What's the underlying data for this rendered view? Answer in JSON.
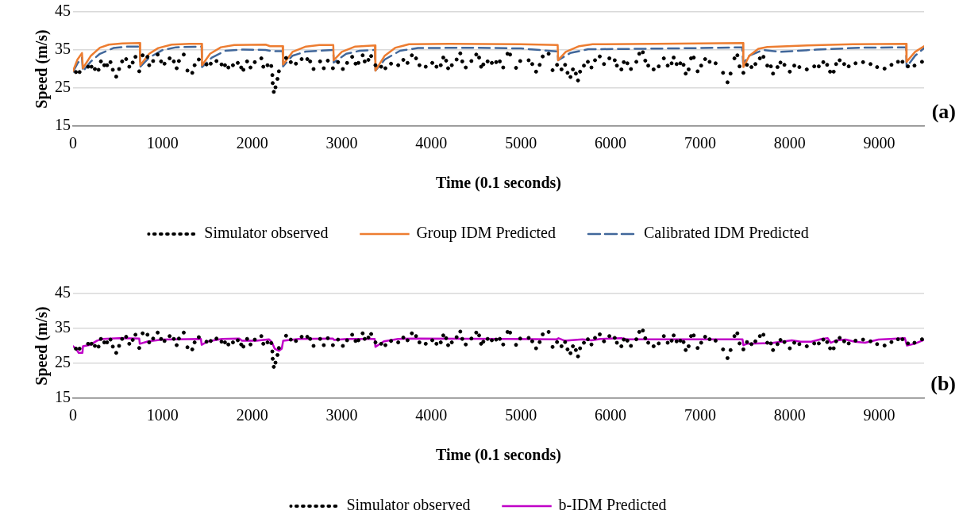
{
  "chart_data": [
    {
      "type": "line",
      "xlabel": "Time (0.1 seconds)",
      "ylabel": "Speed (m/s)",
      "annotations": [
        "(a)"
      ],
      "xlim": [
        0,
        9500
      ],
      "xticks": [
        0,
        1000,
        2000,
        3000,
        4000,
        5000,
        6000,
        7000,
        8000,
        9000
      ],
      "ylim": [
        15,
        45
      ],
      "yticks": [
        15,
        25,
        35,
        45
      ],
      "grid": "y",
      "legend": "bottom",
      "series": [
        {
          "name": "Simulator observed",
          "type": "scatter",
          "marker": "circle",
          "color": "#000000",
          "x": [
            32,
            73,
            168,
            206,
            244,
            285,
            311,
            349,
            380,
            418,
            444,
            482,
            514,
            548,
            593,
            628,
            666,
            697,
            739,
            777,
            831,
            850,
            894,
            945,
            983,
            1021,
            1078,
            1125,
            1157,
            1182,
            1236,
            1277,
            1331,
            1357,
            1404,
            1490,
            1537,
            1601,
            1658,
            1696,
            1734,
            1785,
            1839,
            1877,
            1902,
            1943,
            1981,
            2029,
            2102,
            2124,
            2171,
            2213,
            2225,
            2229,
            2241,
            2260,
            2282,
            2298,
            2378,
            2431,
            2488,
            2552,
            2615,
            2647,
            2685,
            2758,
            2799,
            2844,
            2901,
            2958,
            3012,
            3059,
            3116,
            3154,
            3186,
            3233,
            3256,
            3297,
            3328,
            3376,
            3440,
            3487,
            3550,
            3630,
            3687,
            3734,
            3782,
            3829,
            3867,
            3937,
            4010,
            4057,
            4105,
            4133,
            4165,
            4187,
            4228,
            4282,
            4323,
            4345,
            4384,
            4447,
            4501,
            4533,
            4555,
            4580,
            4628,
            4675,
            4723,
            4764,
            4802,
            4850,
            4879,
            4945,
            4992,
            5086,
            5126,
            5169,
            5209,
            5243,
            5309,
            5353,
            5403,
            5453,
            5493,
            5520,
            5553,
            5580,
            5613,
            5637,
            5660,
            5703,
            5747,
            5787,
            5827,
            5880,
            5927,
            5987,
            6047,
            6071,
            6121,
            6148,
            6188,
            6228,
            6288,
            6321,
            6361,
            6388,
            6421,
            6481,
            6538,
            6595,
            6638,
            6682,
            6705,
            6738,
            6779,
            6815,
            6839,
            6872,
            6899,
            6929,
            6972,
            7012,
            7056,
            7106,
            7173,
            7256,
            7306,
            7340,
            7383,
            7416,
            7440,
            7483,
            7523,
            7573,
            7617,
            7667,
            7707,
            7750,
            7790,
            7814,
            7864,
            7897,
            7941,
            8001,
            8051,
            8108,
            8191,
            8274,
            8325,
            8375,
            8418,
            8451,
            8491,
            8518,
            8558,
            8608,
            8659,
            8735,
            8819,
            8902,
            8976,
            9059,
            9136,
            9209,
            9259,
            9320,
            9393,
            9477
          ],
          "values": [
            29.2,
            29.2,
            30.6,
            30.6,
            30,
            29.8,
            32,
            31,
            31,
            31.8,
            29.8,
            28,
            30,
            32,
            32.6,
            30.6,
            31.7,
            33.2,
            29.4,
            33.6,
            33.2,
            31,
            32.1,
            33.8,
            32,
            31.4,
            32.8,
            32,
            30.2,
            32.1,
            33.8,
            29.6,
            29,
            31,
            32.5,
            31.2,
            31.4,
            32.1,
            31.2,
            31,
            30.4,
            31,
            31.6,
            30.4,
            29.8,
            32,
            30.4,
            31.8,
            32.8,
            30.6,
            31,
            30.8,
            28.4,
            26.3,
            24,
            25.2,
            27.4,
            29.4,
            32.9,
            31.8,
            31.4,
            32.6,
            32.6,
            32,
            30,
            32,
            30.2,
            32.2,
            30.2,
            31.8,
            30,
            31.6,
            33.2,
            31.4,
            31.6,
            33.6,
            32,
            32.4,
            33.4,
            31,
            30.6,
            30.2,
            31.4,
            31,
            32.4,
            31.6,
            33.6,
            32.8,
            31,
            30.6,
            31.6,
            30.6,
            31,
            33,
            32.2,
            30.2,
            31,
            32.5,
            34.1,
            32,
            30.4,
            32.1,
            33.8,
            33,
            30.6,
            31.2,
            32,
            31.6,
            31.8,
            32,
            30.4,
            34,
            33.8,
            30.3,
            32.1,
            32.3,
            31.3,
            29.3,
            31.1,
            33.3,
            34,
            29.7,
            31.1,
            29.9,
            31.1,
            29,
            27.9,
            29.9,
            28.8,
            27,
            29.3,
            30.9,
            31.9,
            30.4,
            32.3,
            33.3,
            31.3,
            32.8,
            32.3,
            30.9,
            29.9,
            31.8,
            31.5,
            30,
            31.9,
            34,
            34.4,
            32.2,
            30.9,
            29.9,
            30.7,
            32.8,
            30.9,
            31.5,
            33,
            31.3,
            31.5,
            31.1,
            28.8,
            29.9,
            32.8,
            33,
            29.4,
            30.9,
            32.6,
            31.9,
            31.5,
            29,
            26.5,
            28.8,
            32.8,
            33.6,
            30.7,
            29,
            31.1,
            30.5,
            31.3,
            32.8,
            33.2,
            30.9,
            30.7,
            28.8,
            30.5,
            31.7,
            31.1,
            29.3,
            30.9,
            30.5,
            29.9,
            30.7,
            30.7,
            31.8,
            31.1,
            29.3,
            29.3,
            31.3,
            32.3,
            31.3,
            30.7,
            31.5,
            31.8,
            31.3,
            30.5,
            30.1,
            31.1,
            31.9,
            31.9,
            30.7,
            30.9,
            31.9
          ]
        },
        {
          "name": "Group IDM Predicted",
          "type": "line",
          "marker": "none",
          "line_style": "solid",
          "color": "#ed7d31",
          "x": [
            0,
            50,
            100,
            110,
            200,
            300,
            400,
            550,
            745,
            750,
            850,
            950,
            1100,
            1300,
            1436,
            1440,
            1530,
            1650,
            1800,
            2150,
            2200,
            2340,
            2345,
            2450,
            2600,
            2750,
            2905,
            2910,
            3000,
            3150,
            3370,
            3376,
            3480,
            3600,
            3750,
            4200,
            5000,
            5410,
            5415,
            5500,
            5650,
            5800,
            6500,
            7480,
            7483,
            7550,
            7650,
            7750,
            8200,
            8700,
            9300,
            9305,
            9400,
            9500
          ],
          "values": [
            29.5,
            32.5,
            34.2,
            30.2,
            33.5,
            35.6,
            36.4,
            36.7,
            36.8,
            31,
            34,
            35.5,
            36.4,
            36.6,
            36.6,
            31,
            34,
            35.7,
            36.3,
            36.4,
            36,
            36,
            31.2,
            34.5,
            35.9,
            36.3,
            36.3,
            32.3,
            34.5,
            35.9,
            36.2,
            29.6,
            33.5,
            35.6,
            36.5,
            36.6,
            36.5,
            36.3,
            32.3,
            34.5,
            36,
            36.5,
            36.6,
            36.8,
            30.5,
            33.5,
            35.3,
            35.8,
            36.2,
            36.5,
            36.6,
            31.9,
            34.5,
            36
          ]
        },
        {
          "name": "Calibrated IDM Predicted",
          "type": "line",
          "marker": "none",
          "line_style": "dashed",
          "color": "#41679a",
          "x": [
            0,
            50,
            100,
            110,
            200,
            300,
            450,
            600,
            745,
            750,
            850,
            1000,
            1150,
            1436,
            1440,
            1550,
            1700,
            1900,
            2150,
            2220,
            2340,
            2345,
            2450,
            2600,
            2905,
            2910,
            3050,
            3200,
            3370,
            3376,
            3480,
            3650,
            3850,
            4500,
            5000,
            5410,
            5415,
            5550,
            5750,
            6300,
            7000,
            7470,
            7480,
            7550,
            7700,
            7900,
            8300,
            8800,
            9300,
            9305,
            9400,
            9500
          ],
          "values": [
            29.3,
            31.5,
            33,
            29.4,
            32,
            34,
            35.5,
            35.9,
            35.9,
            30.6,
            33,
            35,
            35.7,
            35.9,
            30.5,
            33,
            34.8,
            35.1,
            35,
            34.7,
            34.7,
            30.7,
            33.5,
            34.6,
            35,
            31.7,
            34,
            34.8,
            35,
            29.6,
            32.5,
            34.8,
            35.5,
            35.6,
            35.4,
            34.6,
            32.3,
            34.2,
            35.2,
            35.3,
            35.5,
            35.7,
            31.5,
            33.5,
            35,
            34.5,
            35.1,
            35.6,
            35.7,
            30.5,
            33.5,
            35.5
          ]
        }
      ]
    },
    {
      "type": "line",
      "xlabel": "Time (0.1 seconds)",
      "ylabel": "Speed (m/s)",
      "annotations": [
        "(b)"
      ],
      "xlim": [
        0,
        9500
      ],
      "xticks": [
        0,
        1000,
        2000,
        3000,
        4000,
        5000,
        6000,
        7000,
        8000,
        9000
      ],
      "ylim": [
        15,
        45
      ],
      "yticks": [
        15,
        25,
        35,
        45
      ],
      "grid": "y",
      "legend": "bottom",
      "series": [
        {
          "name": "Simulator observed",
          "type": "scatter",
          "marker": "circle",
          "color": "#000000",
          "x": [
            32,
            73,
            168,
            206,
            244,
            285,
            311,
            349,
            380,
            418,
            444,
            482,
            514,
            548,
            593,
            628,
            666,
            697,
            739,
            777,
            831,
            850,
            894,
            945,
            983,
            1021,
            1078,
            1125,
            1157,
            1182,
            1236,
            1277,
            1331,
            1357,
            1404,
            1490,
            1537,
            1601,
            1658,
            1696,
            1734,
            1785,
            1839,
            1877,
            1902,
            1943,
            1981,
            2029,
            2102,
            2124,
            2171,
            2213,
            2225,
            2229,
            2241,
            2260,
            2282,
            2298,
            2378,
            2431,
            2488,
            2552,
            2615,
            2647,
            2685,
            2758,
            2799,
            2844,
            2901,
            2958,
            3012,
            3059,
            3116,
            3154,
            3186,
            3233,
            3256,
            3297,
            3328,
            3376,
            3440,
            3487,
            3550,
            3630,
            3687,
            3734,
            3782,
            3829,
            3867,
            3937,
            4010,
            4057,
            4105,
            4133,
            4165,
            4187,
            4228,
            4282,
            4323,
            4345,
            4384,
            4447,
            4501,
            4533,
            4555,
            4580,
            4628,
            4675,
            4723,
            4764,
            4802,
            4850,
            4879,
            4945,
            4992,
            5086,
            5126,
            5169,
            5209,
            5243,
            5309,
            5353,
            5403,
            5453,
            5493,
            5520,
            5553,
            5580,
            5613,
            5637,
            5660,
            5703,
            5747,
            5787,
            5827,
            5880,
            5927,
            5987,
            6047,
            6071,
            6121,
            6148,
            6188,
            6228,
            6288,
            6321,
            6361,
            6388,
            6421,
            6481,
            6538,
            6595,
            6638,
            6682,
            6705,
            6738,
            6779,
            6815,
            6839,
            6872,
            6899,
            6929,
            6972,
            7012,
            7056,
            7106,
            7173,
            7256,
            7306,
            7340,
            7383,
            7416,
            7440,
            7483,
            7523,
            7573,
            7617,
            7667,
            7707,
            7750,
            7790,
            7814,
            7864,
            7897,
            7941,
            8001,
            8051,
            8108,
            8191,
            8274,
            8325,
            8375,
            8418,
            8451,
            8491,
            8518,
            8558,
            8608,
            8659,
            8735,
            8819,
            8902,
            8976,
            9059,
            9136,
            9209,
            9259,
            9320,
            9393,
            9477
          ],
          "values": [
            29.2,
            29.2,
            30.6,
            30.6,
            30,
            29.8,
            32,
            31,
            31,
            31.8,
            29.8,
            28,
            30,
            32,
            32.6,
            30.6,
            31.7,
            33.2,
            29.4,
            33.6,
            33.2,
            31,
            32.1,
            33.8,
            32,
            31.4,
            32.8,
            32,
            30.2,
            32.1,
            33.8,
            29.6,
            29,
            31,
            32.5,
            31.2,
            31.4,
            32.1,
            31.2,
            31,
            30.4,
            31,
            31.6,
            30.4,
            29.8,
            32,
            30.4,
            31.8,
            32.8,
            30.6,
            31,
            30.8,
            28.4,
            26.3,
            24,
            25.2,
            27.4,
            29.4,
            32.9,
            31.8,
            31.4,
            32.6,
            32.6,
            32,
            30,
            32,
            30.2,
            32.2,
            30.2,
            31.8,
            30,
            31.6,
            33.2,
            31.4,
            31.6,
            33.6,
            32,
            32.4,
            33.4,
            31,
            30.6,
            30.2,
            31.4,
            31,
            32.4,
            31.6,
            33.6,
            32.8,
            31,
            30.6,
            31.6,
            30.6,
            31,
            33,
            32.2,
            30.2,
            31,
            32.5,
            34.1,
            32,
            30.4,
            32.1,
            33.8,
            33,
            30.6,
            31.2,
            32,
            31.6,
            31.8,
            32,
            30.4,
            34,
            33.8,
            30.3,
            32.1,
            32.3,
            31.3,
            29.3,
            31.1,
            33.3,
            34,
            29.7,
            31.1,
            29.9,
            31.1,
            29,
            27.9,
            29.9,
            28.8,
            27,
            29.3,
            30.9,
            31.9,
            30.4,
            32.3,
            33.3,
            31.3,
            32.8,
            32.3,
            30.9,
            29.9,
            31.8,
            31.5,
            30,
            31.9,
            34,
            34.4,
            32.2,
            30.9,
            29.9,
            30.7,
            32.8,
            30.9,
            31.5,
            33,
            31.3,
            31.5,
            31.1,
            28.8,
            29.9,
            32.8,
            33,
            29.4,
            30.9,
            32.6,
            31.9,
            31.5,
            29,
            26.5,
            28.8,
            32.8,
            33.6,
            30.7,
            29,
            31.1,
            30.5,
            31.3,
            32.8,
            33.2,
            30.9,
            30.7,
            28.8,
            30.5,
            31.7,
            31.1,
            29.3,
            30.9,
            30.5,
            29.9,
            30.7,
            30.7,
            31.8,
            31.1,
            29.3,
            29.3,
            31.3,
            32.3,
            31.3,
            30.7,
            31.5,
            31.8,
            31.3,
            30.5,
            30.1,
            31.1,
            31.9,
            31.9,
            30.7,
            30.9,
            31.9
          ]
        },
        {
          "name": "b-IDM Predicted",
          "type": "line",
          "marker": "none",
          "line_style": "solid",
          "color": "#c000c8",
          "x": [
            0,
            32,
            63,
            105,
            111,
            190,
            269,
            333,
            523,
            739,
            745,
            840,
            999,
            1427,
            1436,
            1506,
            1664,
            1855,
            1886,
            2045,
            2187,
            2219,
            2251,
            2298,
            2330,
            2346,
            2520,
            2901,
            2916,
            3059,
            3367,
            3376,
            3471,
            3630,
            3820,
            4834,
            5403,
            5420,
            5486,
            5687,
            5787,
            5887,
            6121,
            6188,
            7473,
            7483,
            7523,
            7790,
            8024,
            8124,
            8241,
            8358,
            8425,
            8458,
            8525,
            8625,
            8725,
            8842,
            8992,
            9126,
            9286,
            9309,
            9393,
            9500
          ],
          "values": [
            29.9,
            29.2,
            28,
            28,
            29.9,
            30.3,
            31.5,
            32,
            32.2,
            32.1,
            30.6,
            31.3,
            31.8,
            32,
            30.3,
            31.3,
            32,
            32.1,
            31.5,
            31.5,
            31.9,
            31.1,
            29.2,
            28.6,
            29.2,
            31.5,
            32,
            32.1,
            31.7,
            32,
            32,
            29.7,
            31.3,
            32,
            32.1,
            32,
            31.9,
            32.2,
            31.5,
            31.9,
            31.6,
            32,
            32.2,
            31.9,
            31.9,
            30.2,
            30.6,
            30.8,
            31.6,
            31.2,
            31.2,
            32,
            32.2,
            30.9,
            31.6,
            31.8,
            31.2,
            30.9,
            31.8,
            32,
            32.2,
            30.1,
            30.6,
            31.7
          ]
        }
      ]
    }
  ]
}
